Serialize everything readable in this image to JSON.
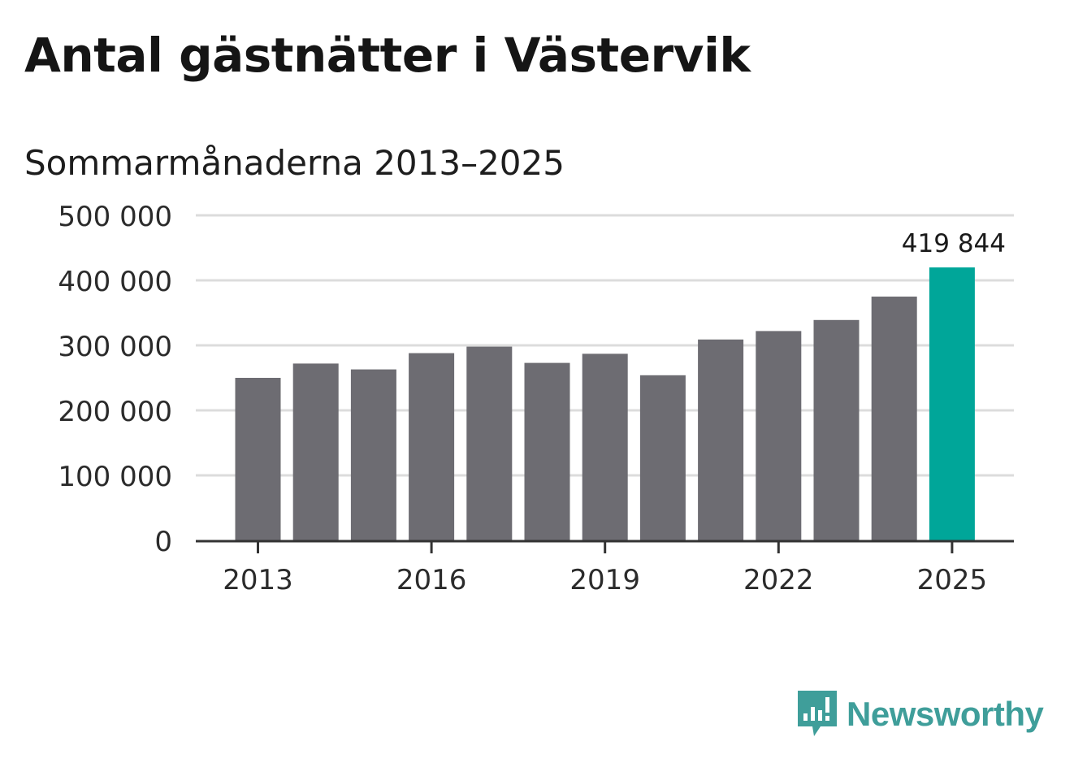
{
  "header": {
    "title": "Antal gästnätter i Västervik",
    "subtitle": "Sommarmånaderna 2013–2025"
  },
  "brand": {
    "name": "Newsworthy",
    "icon": "newsworthy-logo-icon",
    "color": "#3f9e9a"
  },
  "colors": {
    "bar": "#6d6c72",
    "highlight": "#00a699",
    "grid": "#dcdcdc",
    "axis": "#333333"
  },
  "chart_data": {
    "type": "bar",
    "title": "Antal gästnätter i Västervik",
    "subtitle": "Sommarmånaderna 2013–2025",
    "categories": [
      "2013",
      "2014",
      "2015",
      "2016",
      "2017",
      "2018",
      "2019",
      "2020",
      "2021",
      "2022",
      "2023",
      "2024",
      "2025"
    ],
    "values": [
      250000,
      272000,
      263000,
      288000,
      298000,
      273000,
      287000,
      254000,
      309000,
      322000,
      339000,
      375000,
      419844
    ],
    "ylim": [
      0,
      500000
    ],
    "yticks": [
      0,
      100000,
      200000,
      300000,
      400000,
      500000
    ],
    "ytick_labels": [
      "0",
      "100 000",
      "200 000",
      "300 000",
      "400 000",
      "500 000"
    ],
    "xtick_labels": [
      "2013",
      "2016",
      "2019",
      "2022",
      "2025"
    ],
    "highlight_category": "2025",
    "data_labels": [
      {
        "category": "2025",
        "text": "419 844"
      }
    ],
    "grid": true,
    "legend": "none"
  }
}
